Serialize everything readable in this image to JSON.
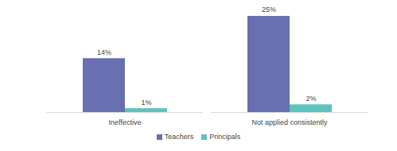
{
  "chart_data": {
    "type": "bar",
    "categories": [
      "Ineffective",
      "Not applied consistently"
    ],
    "series": [
      {
        "name": "Teachers",
        "color": "#6870b0",
        "values": [
          14,
          25
        ],
        "value_labels": [
          "14%",
          "25%"
        ]
      },
      {
        "name": "Principals",
        "color": "#5cc3bd",
        "values": [
          1,
          2
        ],
        "value_labels": [
          "1%",
          "2%"
        ]
      }
    ],
    "ylim": [
      0,
      25
    ],
    "data_labels": true,
    "tick_labels": "x",
    "legend": "bottom"
  }
}
